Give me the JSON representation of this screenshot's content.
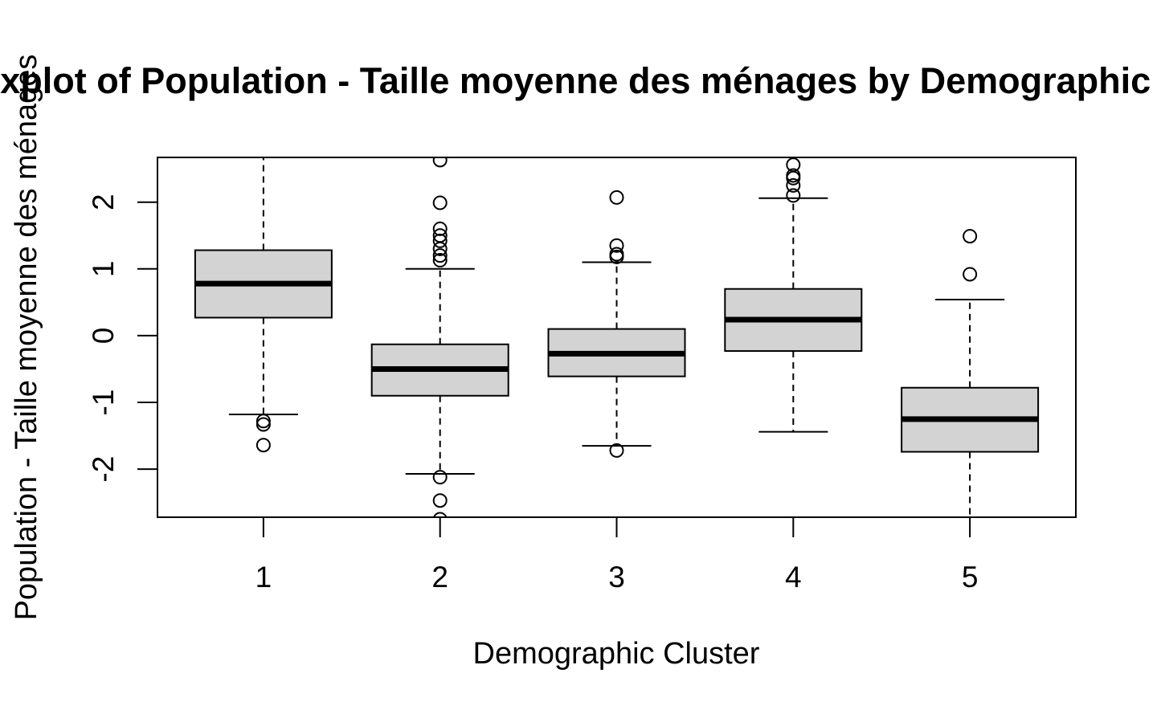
{
  "chart_data": {
    "type": "boxplot",
    "title": "Boxplot of Population - Taille moyenne des ménages by Demographic Cluster",
    "xlabel": "Demographic Cluster",
    "ylabel": "Population - Taille moyenne des ménages",
    "categories": [
      "1",
      "2",
      "3",
      "4",
      "5"
    ],
    "ylim": [
      -2.72,
      2.67
    ],
    "y_ticks": [
      -2,
      -1,
      0,
      1,
      2
    ],
    "grid": false,
    "legend": "none",
    "box_fill": "#d3d3d3",
    "line_color": "#000000",
    "background": "#ffffff",
    "boxes": [
      {
        "category": "1",
        "whisker_low": -1.18,
        "q1": 0.27,
        "median": 0.78,
        "q3": 1.28,
        "whisker_high": 2.67,
        "outliers": [
          -1.28,
          -1.33,
          -1.64
        ]
      },
      {
        "category": "2",
        "whisker_low": -2.07,
        "q1": -0.9,
        "median": -0.5,
        "q3": -0.13,
        "whisker_high": 1.0,
        "outliers": [
          2.63,
          1.99,
          1.6,
          1.5,
          1.42,
          1.3,
          1.2,
          1.13,
          -2.12,
          -2.47,
          -2.75
        ]
      },
      {
        "category": "3",
        "whisker_low": -1.65,
        "q1": -0.61,
        "median": -0.27,
        "q3": 0.1,
        "whisker_high": 1.1,
        "outliers": [
          2.07,
          1.35,
          1.22,
          1.18,
          -1.72
        ]
      },
      {
        "category": "4",
        "whisker_low": -1.44,
        "q1": -0.23,
        "median": 0.24,
        "q3": 0.7,
        "whisker_high": 2.06,
        "outliers": [
          2.56,
          2.4,
          2.36,
          2.25,
          2.1
        ]
      },
      {
        "category": "5",
        "whisker_low": -2.75,
        "q1": -1.74,
        "median": -1.25,
        "q3": -0.78,
        "whisker_high": 0.54,
        "outliers": [
          1.49,
          0.92
        ]
      }
    ]
  }
}
